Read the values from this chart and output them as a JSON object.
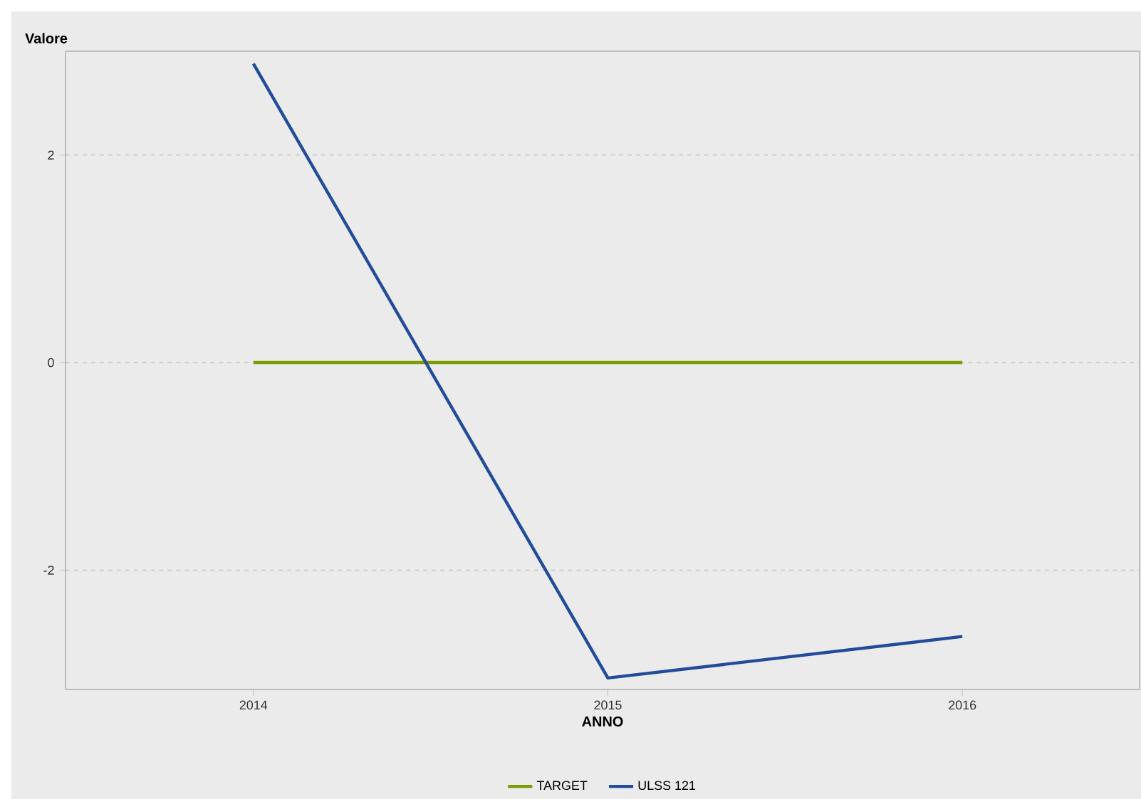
{
  "chart_data": {
    "type": "line",
    "xlabel": "ANNO",
    "ylabel": "Valore",
    "x": [
      2014,
      2015,
      2016
    ],
    "series": [
      {
        "name": "TARGET",
        "color": "#7a9c05",
        "values": [
          0,
          0,
          0
        ]
      },
      {
        "name": "ULSS 121",
        "color": "#234b9b",
        "values": [
          2.88,
          -3.04,
          -2.64
        ]
      }
    ],
    "xlim": [
      2013.47,
      2016.5
    ],
    "ylim": [
      -3.15,
      3
    ],
    "xticks": [
      2014,
      2015,
      2016
    ],
    "yticks": [
      -2,
      0,
      2
    ],
    "grid": "y",
    "legend": "bottom",
    "marker": "none",
    "line_style": "solid"
  }
}
